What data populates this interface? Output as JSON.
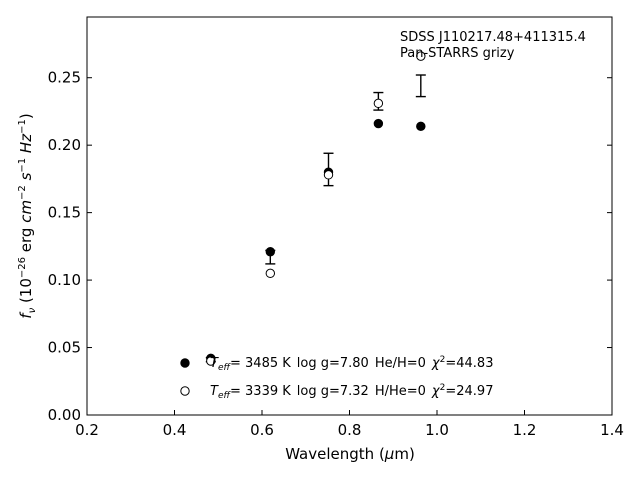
{
  "chart_data": {
    "type": "scatter",
    "title": "",
    "annotation": {
      "line1": "SDSS J110217.48+411315.4",
      "line2": "Pan-STARRS grizy"
    },
    "xlabel": "Wavelength (μm)",
    "ylabel_tex": "fν (10^-26 erg cm^-2 s^-1 Hz^-1)",
    "xlim": [
      0.2,
      1.4
    ],
    "ylim": [
      0.0,
      0.295
    ],
    "xticks": [
      0.2,
      0.4,
      0.6,
      0.8,
      1.0,
      1.2,
      1.4
    ],
    "xtick_labels": [
      "0.2",
      "0.4",
      "0.6",
      "0.8",
      "1.0",
      "1.2",
      "1.4"
    ],
    "yticks": [
      0.0,
      0.05,
      0.1,
      0.15,
      0.2,
      0.25
    ],
    "ytick_labels": [
      "0.00",
      "0.05",
      "0.10",
      "0.15",
      "0.20",
      "0.25"
    ],
    "grid": false,
    "observed": {
      "x": [
        0.483,
        0.619,
        0.752,
        0.866,
        0.963
      ],
      "y": [
        0.041,
        0.117,
        0.182,
        0.2325,
        0.244
      ],
      "yerr": [
        0.0015,
        0.005,
        0.012,
        0.0065,
        0.008
      ]
    },
    "series": [
      {
        "marker": "filled-circle",
        "x": [
          0.483,
          0.619,
          0.752,
          0.866,
          0.963
        ],
        "y": [
          0.042,
          0.121,
          0.18,
          0.216,
          0.214
        ]
      },
      {
        "marker": "open-circle",
        "x": [
          0.483,
          0.619,
          0.752,
          0.866,
          0.963
        ],
        "y": [
          0.04,
          0.105,
          0.178,
          0.231,
          0.266
        ]
      }
    ],
    "legend": {
      "placement": "bottom-center",
      "entries": [
        {
          "marker": "filled-circle",
          "teff_prefix": "T",
          "teff_sub": "eff",
          "teff_value": "=  3485 K",
          "logg": "log g=7.80",
          "composition": "He/H=0",
          "chi_prefix": "χ",
          "chi_sup": "2",
          "chi_value": "=44.83"
        },
        {
          "marker": "open-circle",
          "teff_prefix": "T",
          "teff_sub": "eff",
          "teff_value": "=  3339 K",
          "logg": "log g=7.32",
          "composition": "H/He=0",
          "chi_prefix": "χ",
          "chi_sup": "2",
          "chi_value": "=24.97"
        }
      ]
    },
    "colors": {
      "marker": "#000000",
      "axes": "#000000",
      "background": "#ffffff"
    }
  }
}
